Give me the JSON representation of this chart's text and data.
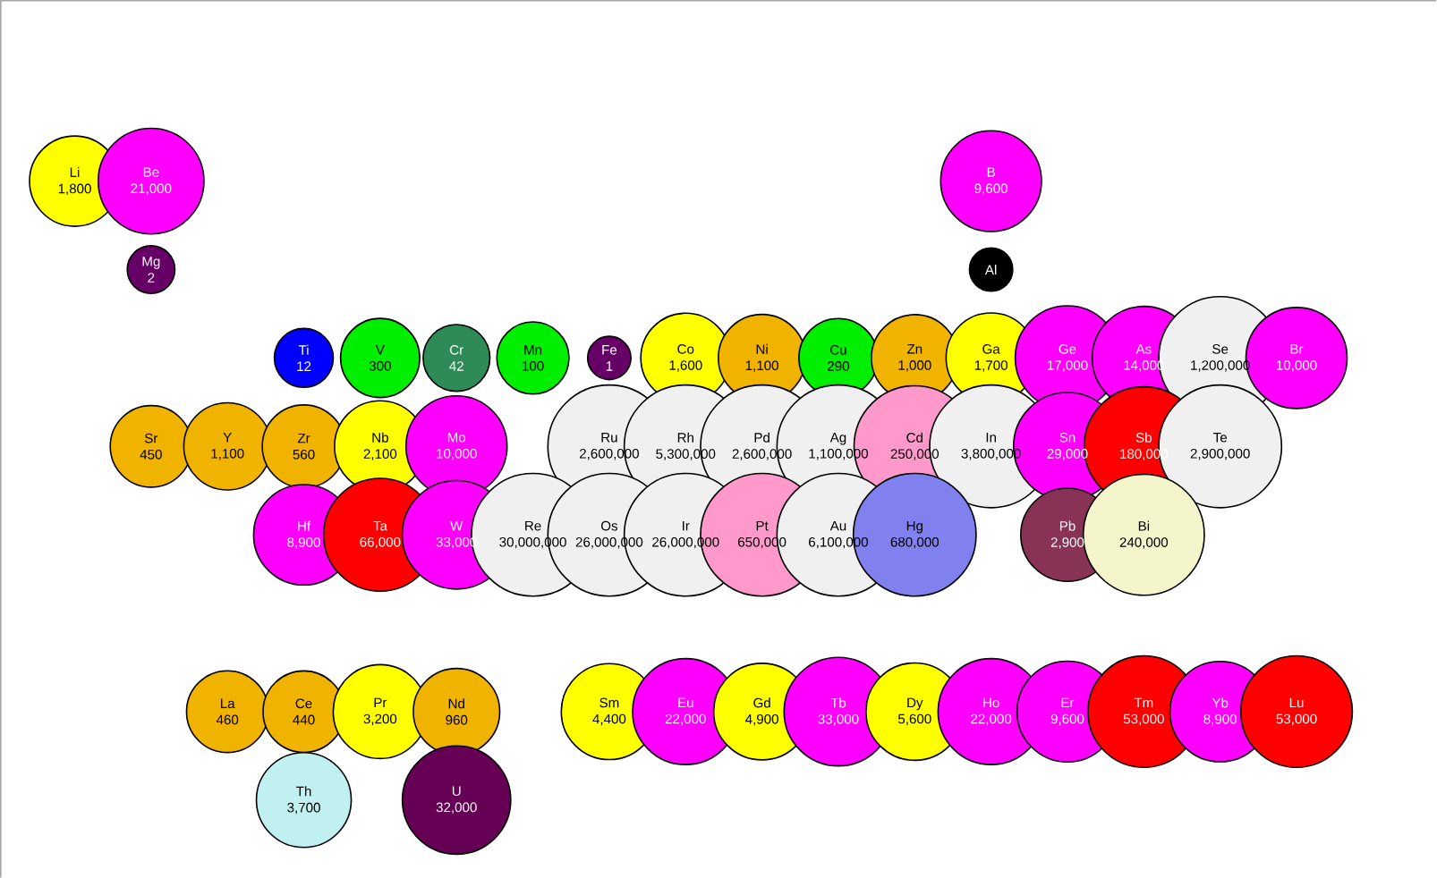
{
  "chart_data": [
    {
      "type": "other",
      "data_labels": true,
      "categories": [
        "Li",
        "Be",
        null,
        null,
        null,
        null,
        null,
        null,
        null,
        null,
        null,
        null,
        "B",
        null,
        null,
        null,
        null,
        null
      ],
      "values": [
        1800,
        21000,
        null,
        null,
        null,
        null,
        null,
        null,
        null,
        null,
        null,
        null,
        9600,
        null,
        null,
        null,
        null,
        null
      ],
      "value_labels": [
        "1,800",
        "21,000",
        null,
        null,
        null,
        null,
        null,
        null,
        null,
        null,
        null,
        null,
        "9,600",
        null,
        null,
        null,
        null,
        null
      ],
      "colors": [
        "#ffff00",
        "#ff00ff",
        null,
        null,
        null,
        null,
        null,
        null,
        null,
        null,
        null,
        null,
        "#ff00ff",
        null,
        null,
        null,
        null,
        null
      ]
    },
    {
      "type": "other",
      "data_labels": true,
      "categories": [
        null,
        "Mg",
        null,
        null,
        null,
        null,
        null,
        null,
        null,
        null,
        null,
        null,
        "Al",
        null,
        null,
        null,
        null,
        null
      ],
      "values": [
        null,
        2,
        null,
        null,
        null,
        null,
        null,
        null,
        null,
        null,
        null,
        null,
        null,
        null,
        null,
        null,
        null,
        null
      ],
      "value_labels": [
        null,
        "2",
        null,
        null,
        null,
        null,
        null,
        null,
        null,
        null,
        null,
        null,
        null,
        null,
        null,
        null,
        null,
        null
      ],
      "colors": [
        null,
        "#660066",
        null,
        null,
        null,
        null,
        null,
        null,
        null,
        null,
        null,
        null,
        "#000000",
        null,
        null,
        null,
        null,
        null
      ]
    },
    {
      "type": "other",
      "data_labels": true,
      "categories": [
        null,
        null,
        null,
        "Ti",
        "V",
        "Cr",
        "Mn",
        "Fe",
        "Co",
        "Ni",
        "Cu",
        "Zn",
        "Ga",
        "Ge",
        "As",
        "Se",
        "Br",
        null
      ],
      "values": [
        null,
        null,
        null,
        12,
        300,
        42,
        100,
        1,
        1600,
        1100,
        290,
        1000,
        1700,
        17000,
        14000,
        1200000,
        10000,
        null
      ],
      "value_labels": [
        null,
        null,
        null,
        "12",
        "300",
        "42",
        "100",
        "1",
        "1,600",
        "1,100",
        "290",
        "1,000",
        "1,700",
        "17,000",
        "14,000",
        "1,200,000",
        "10,000",
        null
      ],
      "colors": [
        null,
        null,
        null,
        "#0000ff",
        "#00ee00",
        "#2e8b57",
        "#00ee00",
        "#660066",
        "#ffff00",
        "#f0b400",
        "#00ee00",
        "#f0b400",
        "#ffff00",
        "#ff00ff",
        "#ff00ff",
        "#f0f0f0",
        "#ff00ff",
        null
      ]
    },
    {
      "type": "other",
      "data_labels": true,
      "categories": [
        null,
        "Sr",
        "Y",
        "Zr",
        "Nb",
        "Mo",
        null,
        "Ru",
        "Rh",
        "Pd",
        "Ag",
        "Cd",
        "In",
        "Sn",
        "Sb",
        "Te",
        null,
        null
      ],
      "values": [
        null,
        450,
        1100,
        560,
        2100,
        10000,
        null,
        2600000,
        5300000,
        2600000,
        1100000,
        250000,
        3800000,
        29000,
        180000,
        2900000,
        null,
        null
      ],
      "value_labels": [
        null,
        "450",
        "1,100",
        "560",
        "2,100",
        "10,000",
        null,
        "2,600,000",
        "5,300,000",
        "2,600,000",
        "1,100,000",
        "250,000",
        "3,800,000",
        "29,000",
        "180,000",
        "2,900,000",
        null,
        null
      ],
      "colors": [
        null,
        "#f0b400",
        "#f0b400",
        "#f0b400",
        "#ffff00",
        "#ff00ff",
        null,
        "#f0f0f0",
        "#f0f0f0",
        "#f0f0f0",
        "#f0f0f0",
        "#ff99cc",
        "#f0f0f0",
        "#ff00ff",
        "#ff0000",
        "#f0f0f0",
        null,
        null
      ]
    },
    {
      "type": "other",
      "data_labels": true,
      "categories": [
        null,
        null,
        null,
        "Hf",
        "Ta",
        "W",
        "Re",
        "Os",
        "Ir",
        "Pt",
        "Au",
        "Hg",
        null,
        "Pb",
        "Bi",
        null,
        null,
        null
      ],
      "values": [
        null,
        null,
        null,
        8900,
        66000,
        33000,
        30000000,
        26000000,
        26000000,
        650000,
        6100000,
        680000,
        null,
        2900,
        240000,
        null,
        null,
        null
      ],
      "value_labels": [
        null,
        null,
        null,
        "8,900",
        "66,000",
        "33,000",
        "30,000,000",
        "26,000,000",
        "26,000,000",
        "650,000",
        "6,100,000",
        "680,000",
        null,
        "2,900",
        "240,000",
        null,
        null,
        null
      ],
      "colors": [
        null,
        null,
        null,
        "#ff00ff",
        "#ff0000",
        "#ff00ff",
        "#f0f0f0",
        "#f0f0f0",
        "#f0f0f0",
        "#ff99cc",
        "#f0f0f0",
        "#8080ee",
        null,
        "#883355",
        "#f5f5cc",
        null,
        null,
        null
      ]
    },
    {
      "type": "other",
      "data_labels": true,
      "categories": [
        null,
        null,
        "La",
        "Ce",
        "Pr",
        "Nd",
        null,
        "Sm",
        "Eu",
        "Gd",
        "Tb",
        "Dy",
        "Ho",
        "Er",
        "Tm",
        "Yb",
        "Lu",
        null
      ],
      "values": [
        null,
        null,
        460,
        440,
        3200,
        960,
        null,
        4400,
        22000,
        4900,
        33000,
        5600,
        22000,
        9600,
        53000,
        8900,
        53000,
        null
      ],
      "value_labels": [
        null,
        null,
        "460",
        "440",
        "3,200",
        "960",
        null,
        "4,400",
        "22,000",
        "4,900",
        "33,000",
        "5,600",
        "22,000",
        "9,600",
        "53,000",
        "8,900",
        "53,000",
        null
      ],
      "colors": [
        null,
        null,
        "#f0b400",
        "#f0b400",
        "#ffff00",
        "#f0b400",
        null,
        "#ffff00",
        "#ff00ff",
        "#ffff00",
        "#ff00ff",
        "#ffff00",
        "#ff00ff",
        "#ff00ff",
        "#ff0000",
        "#ff00ff",
        "#ff0000",
        null
      ]
    },
    {
      "type": "other",
      "data_labels": true,
      "categories": [
        null,
        null,
        null,
        "Th",
        null,
        "U",
        null,
        null,
        null,
        null,
        null,
        null,
        null,
        null,
        null,
        null,
        null,
        null
      ],
      "values": [
        null,
        null,
        null,
        3700,
        null,
        32000,
        null,
        null,
        null,
        null,
        null,
        null,
        null,
        null,
        null,
        null,
        null,
        null
      ],
      "value_labels": [
        null,
        null,
        null,
        "3,700",
        null,
        "32,000",
        null,
        null,
        null,
        null,
        null,
        null,
        null,
        null,
        null,
        null,
        null,
        null
      ],
      "colors": [
        null,
        null,
        null,
        "#c0f0f0",
        null,
        "#660055",
        null,
        null,
        null,
        null,
        null,
        null,
        null,
        null,
        null,
        null,
        null,
        null
      ]
    }
  ]
}
